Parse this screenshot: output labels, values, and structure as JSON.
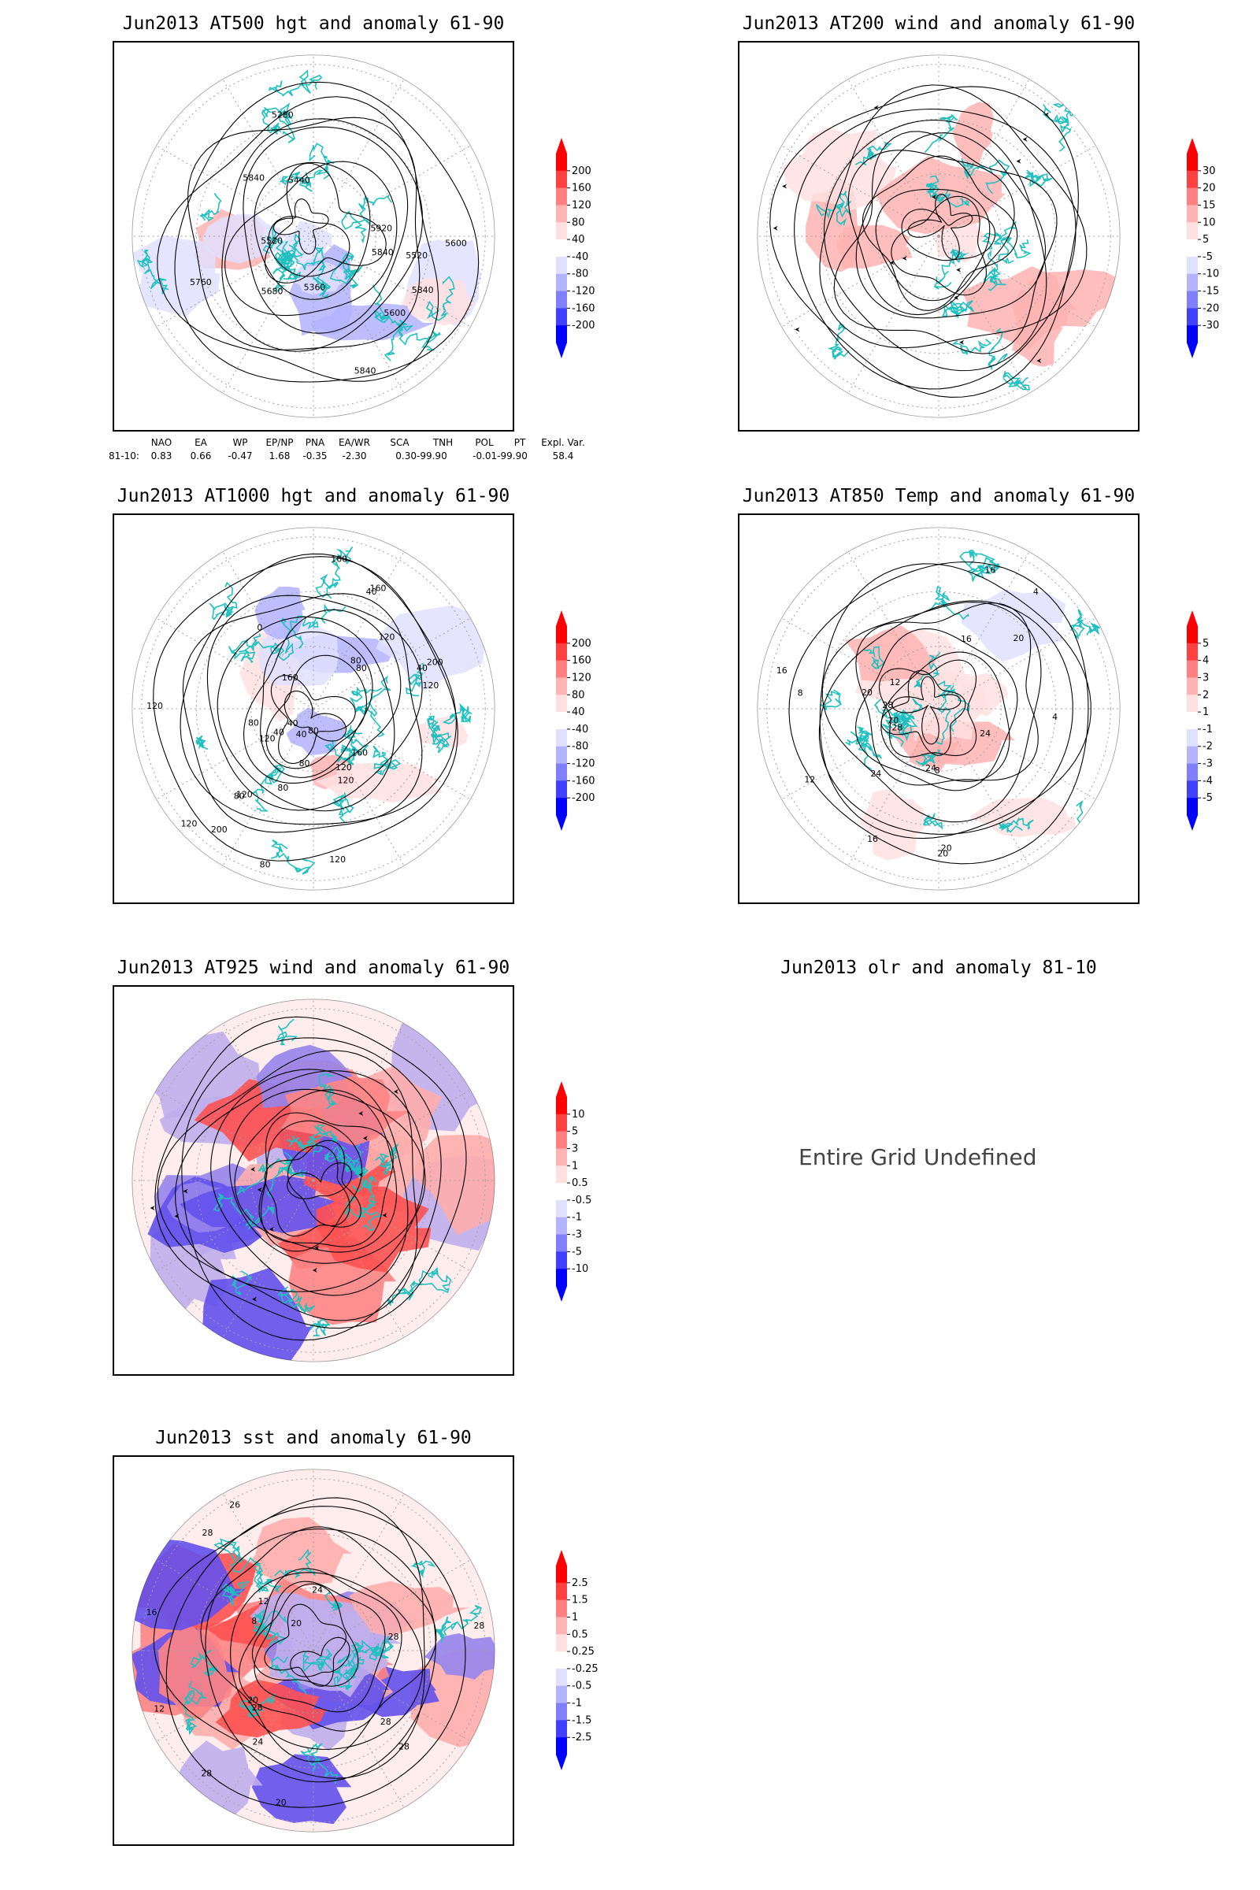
{
  "panels": [
    {
      "title": "Jun2013 AT500 hgt and anomaly 61-90",
      "contour_labels": [
        "5840",
        "5840",
        "5520",
        "5600",
        "5280",
        "5360",
        "5440",
        "5520",
        "5600",
        "5840",
        "5680",
        "5760",
        "5840",
        "5920"
      ],
      "colorbar": [
        "200",
        "160",
        "120",
        "80",
        "40",
        "-40",
        "-80",
        "-120",
        "-160",
        "-200"
      ]
    },
    {
      "title": "Jun2013 AT200 wind and anomaly 61-90",
      "contour_labels": [],
      "colorbar": [
        "30",
        "20",
        "15",
        "10",
        "5",
        "-5",
        "-10",
        "-15",
        "-20",
        "-30"
      ]
    },
    {
      "title": "Jun2013 AT1000 hgt and anomaly 61-90",
      "contour_labels": [
        "80",
        "80",
        "120",
        "160",
        "200",
        "160",
        "120",
        "80",
        "120",
        "40",
        "40",
        "120",
        "0",
        "40",
        "80",
        "120",
        "160",
        "200",
        "40",
        "120",
        "80",
        "40",
        "80",
        "160",
        "120",
        "80",
        "80",
        "120",
        "120"
      ],
      "colorbar": [
        "200",
        "160",
        "120",
        "80",
        "40",
        "-40",
        "-80",
        "-120",
        "-160",
        "-200"
      ]
    },
    {
      "title": "Jun2013 AT850 Temp and anomaly 61-90",
      "contour_labels": [
        "16",
        "12",
        "16",
        "20",
        "8",
        "4",
        "20",
        "24",
        "28",
        "8",
        "4",
        "12",
        "16",
        "24",
        "28",
        "20",
        "16",
        "24",
        "20",
        "20"
      ],
      "colorbar": [
        "5",
        "4",
        "3",
        "2",
        "1",
        "-1",
        "-2",
        "-3",
        "-4",
        "-5"
      ]
    },
    {
      "title": "Jun2013 AT925 wind and anomaly 61-90",
      "contour_labels": [],
      "colorbar": [
        "10",
        "5",
        "3",
        "1",
        "0.5",
        "-0.5",
        "-1",
        "-3",
        "-5",
        "-10"
      ]
    },
    {
      "title": "Jun2013 olr and anomaly 81-10",
      "message": "Entire Grid Undefined"
    },
    {
      "title": "Jun2013 sst and anomaly 61-90",
      "contour_labels": [
        "28",
        "28",
        "24",
        "20",
        "24",
        "26",
        "20",
        "16",
        "12",
        "8",
        "28",
        "28",
        "28",
        "20",
        "12",
        "28",
        "28"
      ],
      "colorbar": [
        "2.5",
        "1.5",
        "1",
        "0.5",
        "0.25",
        "-0.25",
        "-0.5",
        "-1",
        "-1.5",
        "-2.5"
      ]
    }
  ],
  "teleconnections": {
    "headers": [
      "NAO",
      "EA",
      "WP",
      "EP/NP",
      "PNA",
      "EA/WR",
      "SCA",
      "TNH",
      "POL",
      "PT",
      "Expl. Var."
    ],
    "row_label": "81-10:",
    "values": [
      "0.83",
      "0.66",
      "-0.47",
      "1.68",
      "-0.35",
      "-2.30",
      "0.30-99.90",
      "",
      "-0.01-99.90",
      "",
      "58.4"
    ]
  },
  "colors": {
    "coastline": "#20c0c0",
    "contour": "#000000",
    "grid": "#a0a0a0",
    "colorbar_scale": [
      "#ff0000",
      "#ff4040",
      "#ff8080",
      "#ffb3b3",
      "#ffe0e0",
      "#ffffff",
      "#e0e0ff",
      "#b3b3ff",
      "#8080ff",
      "#4040ff",
      "#0000ff"
    ]
  }
}
